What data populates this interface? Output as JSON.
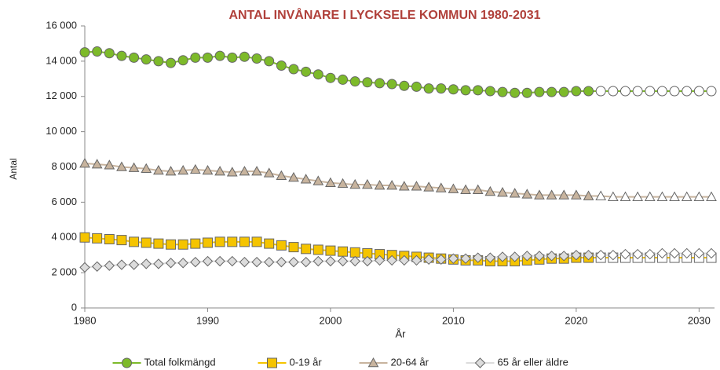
{
  "chart_data": {
    "type": "line",
    "title": "ANTAL INVÅNARE I LYCKSELE KOMMUN 1980-2031",
    "x_label": "År",
    "y_label": "Antal",
    "x": [
      1980,
      1981,
      1982,
      1983,
      1984,
      1985,
      1986,
      1987,
      1988,
      1989,
      1990,
      1991,
      1992,
      1993,
      1994,
      1995,
      1996,
      1997,
      1998,
      1999,
      2000,
      2001,
      2002,
      2003,
      2004,
      2005,
      2006,
      2007,
      2008,
      2009,
      2010,
      2011,
      2012,
      2013,
      2014,
      2015,
      2016,
      2017,
      2018,
      2019,
      2020,
      2021,
      2022,
      2023,
      2024,
      2025,
      2026,
      2027,
      2028,
      2029,
      2030,
      2031
    ],
    "forecast_start": 2022,
    "series": [
      {
        "name": "Total folkmängd",
        "color": "#7dba2a",
        "marker": "circle",
        "values": [
          14500,
          14550,
          14450,
          14300,
          14200,
          14100,
          14000,
          13900,
          14050,
          14200,
          14200,
          14300,
          14200,
          14250,
          14150,
          14000,
          13750,
          13550,
          13400,
          13250,
          13050,
          12950,
          12850,
          12800,
          12750,
          12700,
          12600,
          12550,
          12450,
          12450,
          12400,
          12350,
          12350,
          12300,
          12250,
          12200,
          12200,
          12250,
          12250,
          12250,
          12300,
          12300,
          12300,
          12300,
          12300,
          12300,
          12300,
          12300,
          12300,
          12300,
          12300,
          12300
        ]
      },
      {
        "name": "0-19 år",
        "color": "#f5c400",
        "marker": "square",
        "values": [
          4000,
          3950,
          3900,
          3850,
          3750,
          3700,
          3650,
          3600,
          3600,
          3650,
          3700,
          3750,
          3750,
          3750,
          3750,
          3650,
          3550,
          3450,
          3350,
          3300,
          3250,
          3200,
          3150,
          3100,
          3050,
          3000,
          2950,
          2900,
          2850,
          2800,
          2750,
          2700,
          2700,
          2650,
          2650,
          2650,
          2700,
          2750,
          2800,
          2800,
          2850,
          2850,
          2850,
          2850,
          2850,
          2850,
          2850,
          2850,
          2850,
          2850,
          2850,
          2850
        ]
      },
      {
        "name": "20-64 år",
        "color": "#c8b49e",
        "marker": "triangle",
        "values": [
          8200,
          8150,
          8100,
          8000,
          7950,
          7900,
          7800,
          7750,
          7800,
          7850,
          7800,
          7750,
          7700,
          7750,
          7750,
          7650,
          7500,
          7400,
          7300,
          7200,
          7100,
          7050,
          7000,
          7000,
          6950,
          6950,
          6900,
          6900,
          6850,
          6800,
          6750,
          6700,
          6700,
          6600,
          6550,
          6500,
          6450,
          6400,
          6400,
          6400,
          6400,
          6350,
          6350,
          6300,
          6300,
          6300,
          6300,
          6300,
          6300,
          6300,
          6300,
          6300
        ]
      },
      {
        "name": "65 år eller äldre",
        "color": "#dcdcdc",
        "marker": "diamond",
        "values": [
          2300,
          2350,
          2400,
          2450,
          2450,
          2500,
          2500,
          2550,
          2550,
          2600,
          2650,
          2650,
          2650,
          2600,
          2600,
          2600,
          2600,
          2600,
          2600,
          2650,
          2650,
          2650,
          2650,
          2650,
          2700,
          2700,
          2700,
          2700,
          2750,
          2750,
          2800,
          2800,
          2850,
          2850,
          2900,
          2900,
          2950,
          2950,
          2950,
          2950,
          3000,
          3000,
          3000,
          3000,
          3050,
          3050,
          3050,
          3100,
          3100,
          3100,
          3100,
          3100
        ]
      }
    ],
    "xlim": [
      1980,
      2031
    ],
    "xticks": [
      1980,
      1990,
      2000,
      2010,
      2020,
      2030
    ],
    "ylim": [
      0,
      16000
    ],
    "yticks": [
      0,
      {
        "value": 2000,
        "label": "2 000"
      },
      {
        "value": 4000,
        "label": "4 000"
      },
      {
        "value": 6000,
        "label": "6 000"
      },
      {
        "value": 8000,
        "label": "8 000"
      },
      {
        "value": 10000,
        "label": "10 000"
      },
      {
        "value": 12000,
        "label": "12 000"
      },
      {
        "value": 14000,
        "label": "14 000"
      },
      {
        "value": 16000,
        "label": "16 000"
      }
    ],
    "grid": false,
    "legend": "bottom"
  }
}
